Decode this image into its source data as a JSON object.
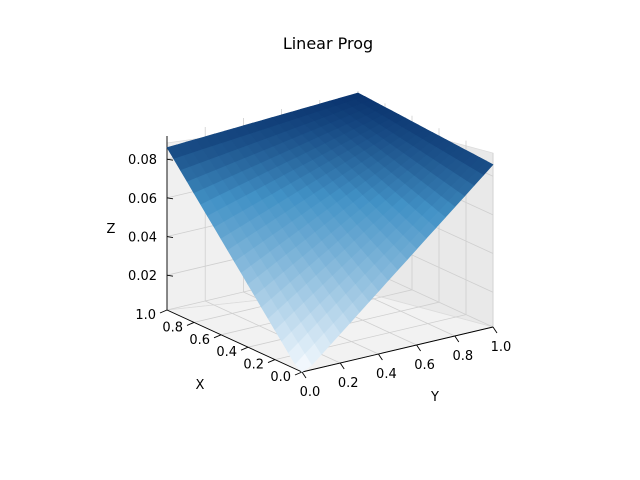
{
  "chart_data": {
    "type": "surface3d",
    "title": "Linear Prog",
    "xlabel": "X",
    "ylabel": "Y",
    "zlabel": "Z",
    "x_ticks": [
      "0.0",
      "0.2",
      "0.4",
      "0.6",
      "0.8",
      "1.0"
    ],
    "y_ticks": [
      "0.0",
      "0.2",
      "0.4",
      "0.6",
      "0.8",
      "1.0"
    ],
    "z_ticks": [
      "0.02",
      "0.04",
      "0.06",
      "0.08"
    ],
    "xlim": [
      0,
      1
    ],
    "ylim": [
      0,
      1
    ],
    "zlim": [
      0.002,
      0.092
    ],
    "grid": true,
    "colormap": "Blues",
    "color_low": "#f7fbff",
    "color_high": "#08306b",
    "surface": {
      "corners": [
        {
          "x": 0.0,
          "y": 0.0,
          "z": 0.0
        },
        {
          "x": 1.0,
          "y": 0.0,
          "z": 0.086
        },
        {
          "x": 1.0,
          "y": 1.0,
          "z": 0.091
        },
        {
          "x": 0.0,
          "y": 1.0,
          "z": 0.086
        }
      ]
    }
  }
}
